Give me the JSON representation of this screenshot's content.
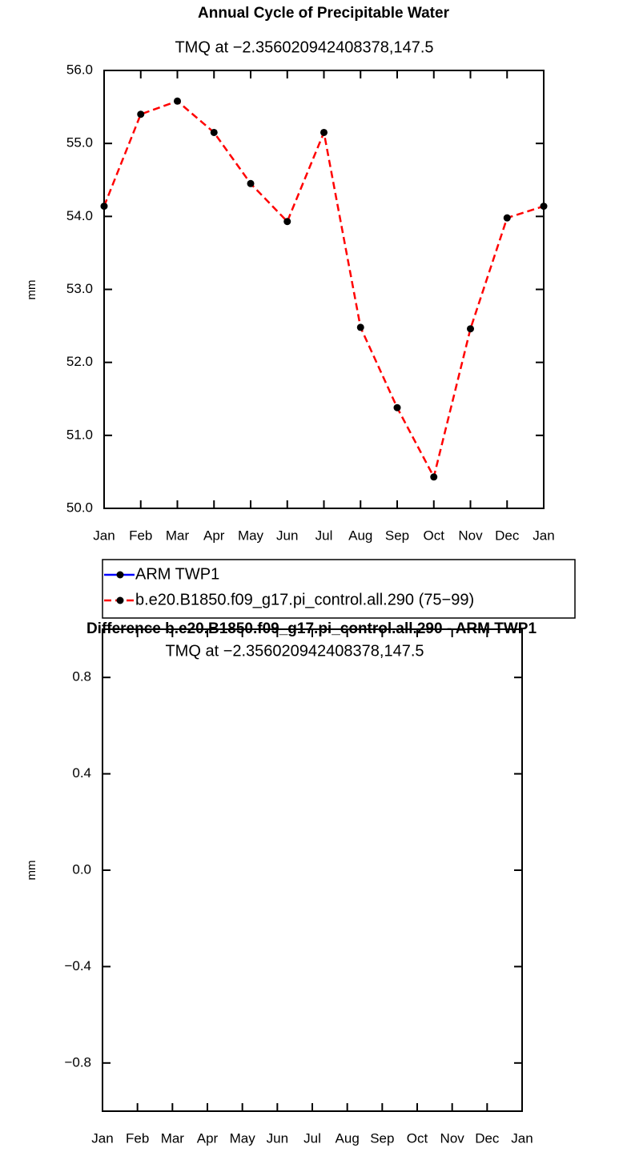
{
  "chart_data": [
    {
      "type": "line",
      "title": "Annual Cycle of Precipitable Water",
      "subtitle": "TMQ at −2.356020942408378,147.5",
      "ylabel": "mm",
      "categories": [
        "Jan",
        "Feb",
        "Mar",
        "Apr",
        "May",
        "Jun",
        "Jul",
        "Aug",
        "Sep",
        "Oct",
        "Nov",
        "Dec",
        "Jan"
      ],
      "ylim": [
        50,
        56
      ],
      "yticks": [
        {
          "value": 50,
          "label": "50.0"
        },
        {
          "value": 51,
          "label": "51.0"
        },
        {
          "value": 52,
          "label": "52.0"
        },
        {
          "value": 53,
          "label": "53.0"
        },
        {
          "value": 54,
          "label": "54.0"
        },
        {
          "value": 55,
          "label": "55.0"
        },
        {
          "value": 56,
          "label": "56.0"
        }
      ],
      "series": [
        {
          "name": "ARM TWP1",
          "color": "#0000ff",
          "dash": false,
          "values": [
            null,
            null,
            null,
            null,
            null,
            null,
            null,
            null,
            null,
            null,
            null,
            null,
            null
          ]
        },
        {
          "name": "b.e20.B1850.f09_g17.pi_control.all.290 (75−99)",
          "color": "#ff0000",
          "dash": true,
          "values": [
            54.14,
            55.4,
            55.58,
            55.15,
            54.45,
            53.93,
            55.15,
            52.48,
            51.38,
            50.43,
            52.46,
            53.98,
            54.14
          ]
        }
      ]
    },
    {
      "type": "line",
      "title": "Difference b.e20.B1850.f09_g17.pi_control.all.290 - ARM TWP1",
      "subtitle": "TMQ at −2.356020942408378,147.5",
      "ylabel": "mm",
      "categories": [
        "Jan",
        "Feb",
        "Mar",
        "Apr",
        "May",
        "Jun",
        "Jul",
        "Aug",
        "Sep",
        "Oct",
        "Nov",
        "Dec",
        "Jan"
      ],
      "ylim": [
        -1,
        1
      ],
      "yticks": [
        {
          "value": -0.8,
          "label": "−0.8"
        },
        {
          "value": -0.4,
          "label": "−0.4"
        },
        {
          "value": 0,
          "label": "0.0"
        },
        0.4,
        0.8
      ]
    }
  ]
}
